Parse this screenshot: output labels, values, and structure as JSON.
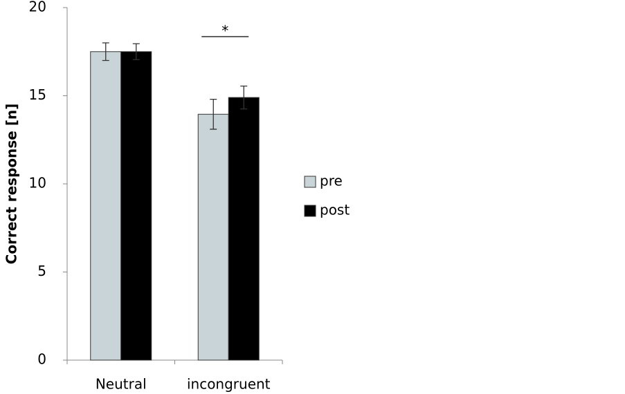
{
  "chart_data": {
    "type": "bar",
    "y_label": "Correct response [n]",
    "categories": [
      "Neutral",
      "incongruent"
    ],
    "series": [
      {
        "name": "pre",
        "color": "#c9d4d8",
        "values": [
          17.5,
          13.95
        ],
        "errors": [
          0.5,
          0.85
        ]
      },
      {
        "name": "post",
        "color": "#000000",
        "values": [
          17.5,
          14.9
        ],
        "errors": [
          0.45,
          0.65
        ]
      }
    ],
    "ylim": [
      0,
      20
    ],
    "yticks": [
      0,
      5,
      10,
      15,
      20
    ],
    "annotation": "*",
    "legend": "right"
  }
}
